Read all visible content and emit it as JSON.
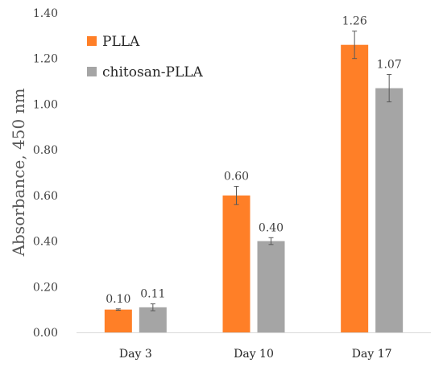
{
  "chart_data": {
    "type": "bar",
    "title": "",
    "xlabel": "",
    "ylabel": "Absorbance, 450 nm",
    "categories": [
      "Day 3",
      "Day 10",
      "Day 17"
    ],
    "series": [
      {
        "name": "PLLA",
        "color": "#FF7F27",
        "values": [
          0.1,
          0.6,
          1.26
        ],
        "labels": [
          "0.10",
          "0.60",
          "1.26"
        ],
        "errors": [
          0.003,
          0.04,
          0.06
        ]
      },
      {
        "name": "chitosan-PLLA",
        "color": "#A5A5A5",
        "values": [
          0.11,
          0.4,
          1.07
        ],
        "labels": [
          "0.11",
          "0.40",
          "1.07"
        ],
        "errors": [
          0.015,
          0.015,
          0.06
        ]
      }
    ],
    "ylim": [
      0,
      1.4
    ],
    "yticks": [
      "0.00",
      "0.20",
      "0.40",
      "0.60",
      "0.80",
      "1.00",
      "1.20",
      "1.40"
    ],
    "grid": false,
    "legend_position": "top-left"
  }
}
